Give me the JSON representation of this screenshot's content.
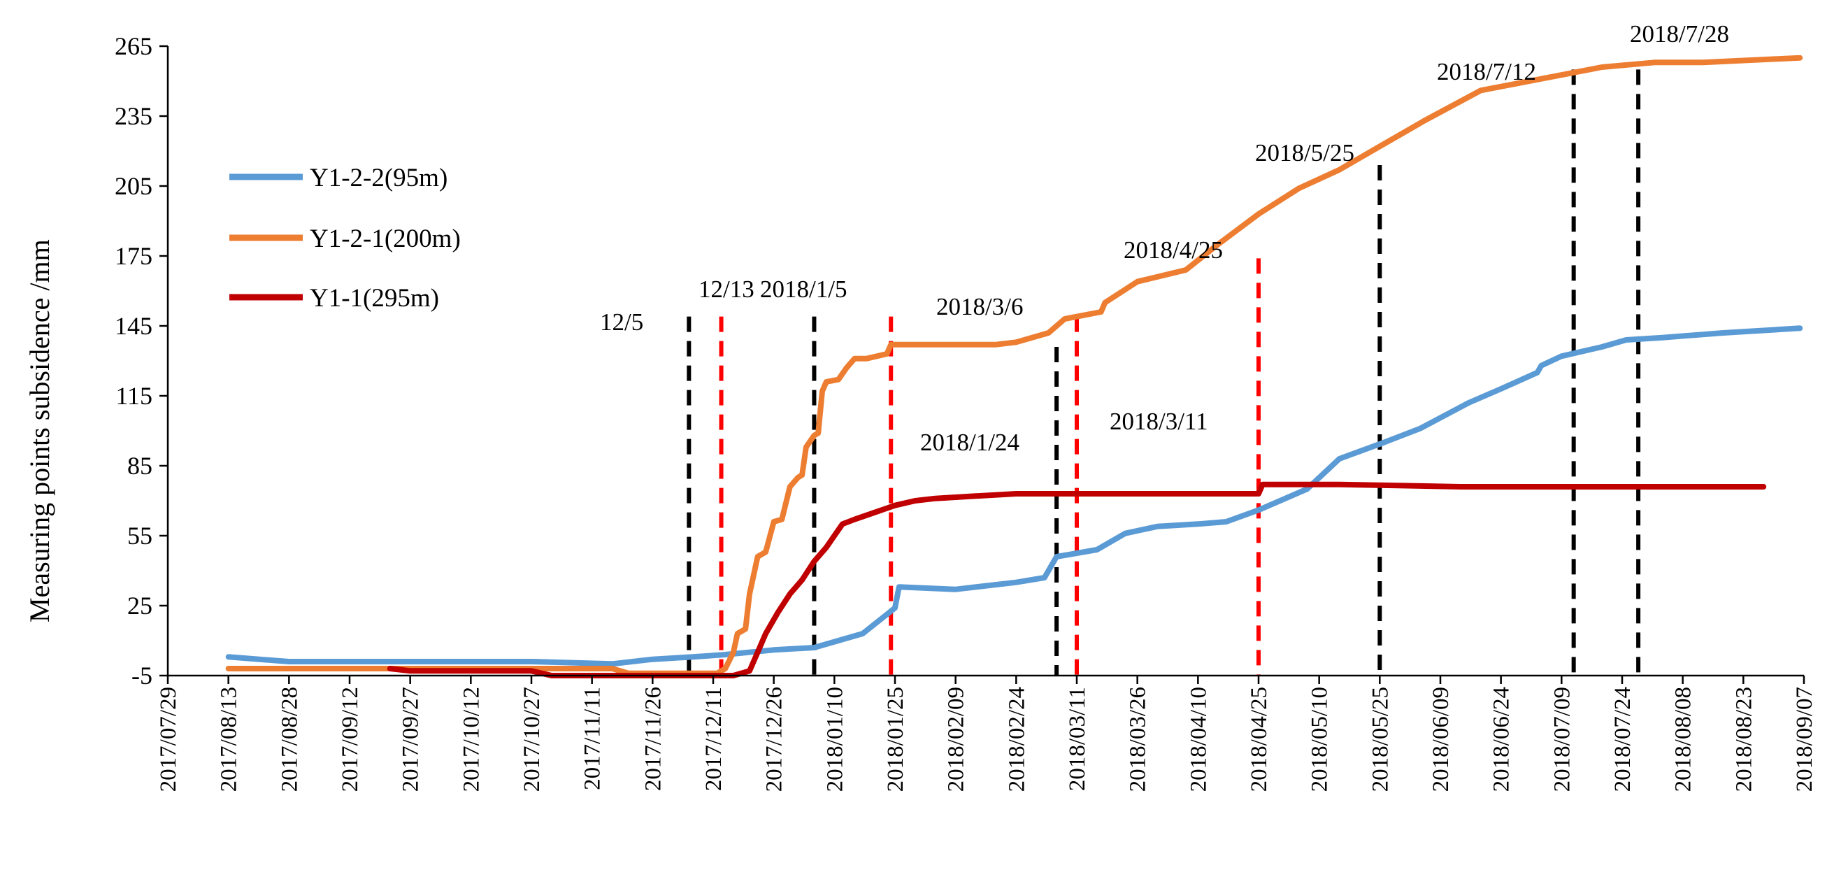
{
  "chart_data": {
    "type": "line",
    "title": "",
    "xlabel": "",
    "ylabel": "Measuring points  subsidence /mm",
    "ylim": [
      -5,
      265
    ],
    "y_ticks": [
      "-5",
      "25",
      "55",
      "85",
      "115",
      "145",
      "175",
      "205",
      "235",
      "265"
    ],
    "x_start": "2017-07-29",
    "x_end": "2018-09-07",
    "x_ticks": [
      "2017/07/29",
      "2017/08/13",
      "2017/08/28",
      "2017/09/12",
      "2017/09/27",
      "2017/10/12",
      "2017/10/27",
      "2017/11/11",
      "2017/11/26",
      "2017/12/11",
      "2017/12/26",
      "2018/01/10",
      "2018/01/25",
      "2018/02/09",
      "2018/02/24",
      "2018/03/11",
      "2018/03/26",
      "2018/04/10",
      "2018/04/25",
      "2018/05/10",
      "2018/05/25",
      "2018/06/09",
      "2018/06/24",
      "2018/07/09",
      "2018/07/24",
      "2018/08/08",
      "2018/08/23",
      "2018/09/07"
    ],
    "legend_position": "left",
    "series": [
      {
        "name": "Y1-2-2(95m)",
        "color": "#5B9BD5",
        "points": [
          [
            15,
            3
          ],
          [
            30,
            1
          ],
          [
            60,
            1
          ],
          [
            90,
            1
          ],
          [
            110,
            0
          ],
          [
            120,
            2
          ],
          [
            130,
            3
          ],
          [
            138,
            4
          ],
          [
            150,
            6
          ],
          [
            160,
            7
          ],
          [
            166,
            10
          ],
          [
            172,
            13
          ],
          [
            180,
            24
          ],
          [
            181,
            33
          ],
          [
            195,
            32
          ],
          [
            210,
            35
          ],
          [
            217,
            37
          ],
          [
            220,
            46
          ],
          [
            230,
            49
          ],
          [
            237,
            56
          ],
          [
            245,
            59
          ],
          [
            255,
            60
          ],
          [
            262,
            61
          ],
          [
            270,
            66
          ],
          [
            282,
            75
          ],
          [
            290,
            88
          ],
          [
            301,
            95
          ],
          [
            310,
            101
          ],
          [
            322,
            112
          ],
          [
            330,
            118
          ],
          [
            339,
            125
          ],
          [
            340,
            128
          ],
          [
            345,
            132
          ],
          [
            355,
            136
          ],
          [
            361,
            139
          ],
          [
            370,
            140
          ],
          [
            385,
            142
          ],
          [
            404,
            144
          ]
        ]
      },
      {
        "name": "Y1-2-1(200m)",
        "color": "#ED7D31",
        "points": [
          [
            15,
            -2
          ],
          [
            60,
            -2
          ],
          [
            90,
            -2
          ],
          [
            110,
            -2
          ],
          [
            114,
            -4
          ],
          [
            136,
            -4
          ],
          [
            138,
            -2
          ],
          [
            140,
            5
          ],
          [
            141,
            13
          ],
          [
            143,
            15
          ],
          [
            144,
            30
          ],
          [
            146,
            46
          ],
          [
            148,
            48
          ],
          [
            150,
            61
          ],
          [
            152,
            62
          ],
          [
            154,
            76
          ],
          [
            156,
            80
          ],
          [
            157,
            81
          ],
          [
            158,
            93
          ],
          [
            160,
            98
          ],
          [
            161,
            99
          ],
          [
            162,
            117
          ],
          [
            163,
            121
          ],
          [
            166,
            122
          ],
          [
            168,
            127
          ],
          [
            170,
            131
          ],
          [
            173,
            131
          ],
          [
            178,
            133
          ],
          [
            179,
            137
          ],
          [
            190,
            137
          ],
          [
            205,
            137
          ],
          [
            210,
            138
          ],
          [
            218,
            142
          ],
          [
            222,
            148
          ],
          [
            231,
            151
          ],
          [
            232,
            155
          ],
          [
            240,
            164
          ],
          [
            252,
            169
          ],
          [
            260,
            180
          ],
          [
            270,
            193
          ],
          [
            280,
            204
          ],
          [
            290,
            212
          ],
          [
            301,
            223
          ],
          [
            311,
            233
          ],
          [
            325,
            246
          ],
          [
            340,
            251
          ],
          [
            355,
            256
          ],
          [
            368,
            258
          ],
          [
            380,
            258
          ],
          [
            404,
            260
          ]
        ]
      },
      {
        "name": "Y1-1(295m)",
        "color": "#C00000",
        "points": [
          [
            55,
            -2
          ],
          [
            60,
            -3
          ],
          [
            90,
            -3
          ],
          [
            95,
            -5
          ],
          [
            120,
            -5
          ],
          [
            138,
            -5
          ],
          [
            140,
            -5
          ],
          [
            144,
            -3
          ],
          [
            146,
            5
          ],
          [
            148,
            13
          ],
          [
            151,
            22
          ],
          [
            154,
            30
          ],
          [
            157,
            36
          ],
          [
            160,
            44
          ],
          [
            163,
            50
          ],
          [
            165,
            55
          ],
          [
            167,
            60
          ],
          [
            170,
            62
          ],
          [
            175,
            65
          ],
          [
            180,
            68
          ],
          [
            185,
            70
          ],
          [
            190,
            71
          ],
          [
            200,
            72
          ],
          [
            210,
            73
          ],
          [
            230,
            73
          ],
          [
            250,
            73
          ],
          [
            265,
            73
          ],
          [
            270,
            73
          ],
          [
            271,
            77
          ],
          [
            290,
            77
          ],
          [
            320,
            76
          ],
          [
            360,
            76
          ],
          [
            395,
            76
          ]
        ]
      }
    ],
    "vertical_markers": [
      {
        "label": "12/5",
        "date": "2017-12-05",
        "color": "black",
        "top": 149
      },
      {
        "label": "12/13",
        "date": "2017-12-13",
        "color": "red",
        "top": 149
      },
      {
        "label": "2018/1/5",
        "date": "2018-01-05",
        "color": "black",
        "top": 149
      },
      {
        "label": "2018/1/24",
        "date": "2018-01-24",
        "color": "red",
        "top": 149
      },
      {
        "label": "2018/3/6",
        "date": "2018-03-06",
        "color": "black",
        "top": 136
      },
      {
        "label": "2018/3/11",
        "date": "2018-03-11",
        "color": "red",
        "top": 149
      },
      {
        "label": "2018/4/25",
        "date": "2018-04-25",
        "color": "red",
        "top": 174
      },
      {
        "label": "2018/5/25",
        "date": "2018-05-25",
        "color": "black",
        "top": 214
      },
      {
        "label": "2018/7/12",
        "date": "2018-07-12",
        "color": "black",
        "top": 255
      },
      {
        "label": "2018/7/28",
        "date": "2018-07-28",
        "color": "black",
        "top": 255
      }
    ]
  }
}
